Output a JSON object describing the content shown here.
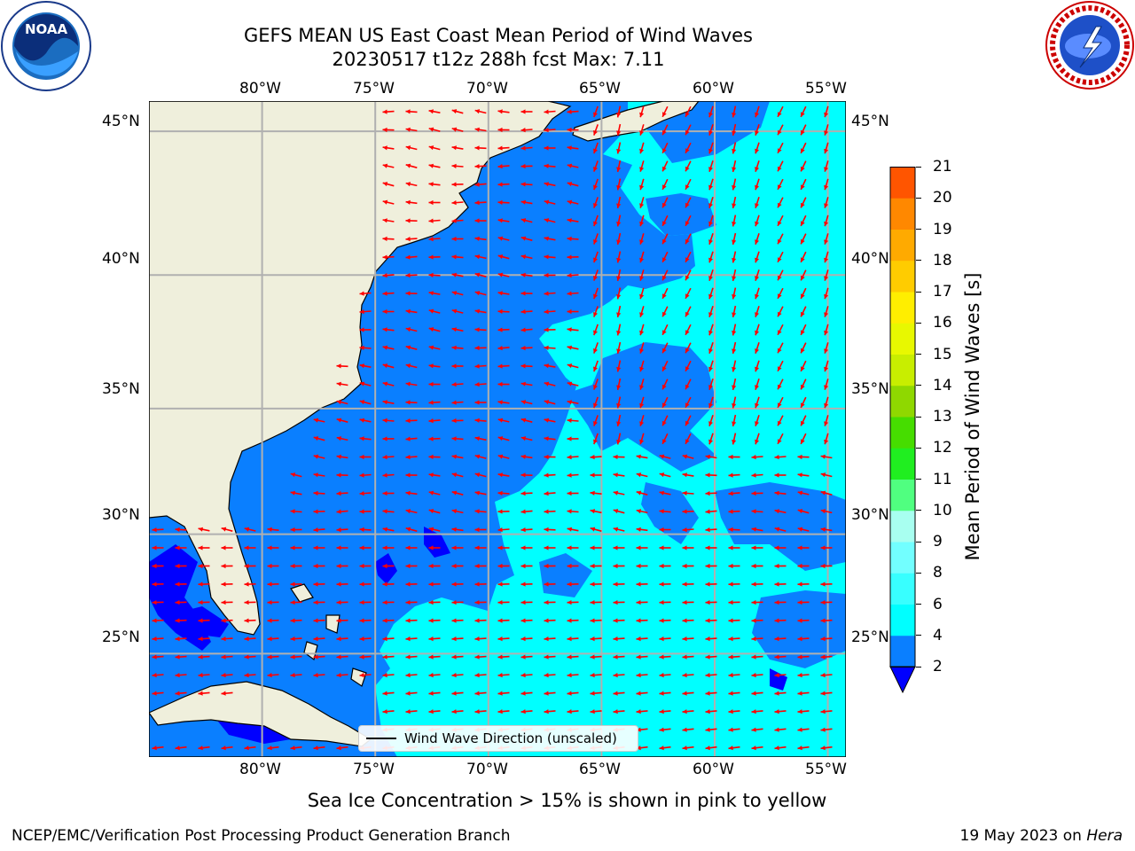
{
  "header": {
    "title_line1": "GEFS MEAN US East Coast Mean Period of Wind Waves",
    "title_line2": "20230517 t12z 288h fcst   Max: 7.11"
  },
  "logos": {
    "left": "noaa-logo",
    "right": "nws-logo"
  },
  "map": {
    "lon_labels": [
      "80°W",
      "75°W",
      "70°W",
      "65°W",
      "60°W",
      "55°W"
    ],
    "lat_labels": [
      "45°N",
      "40°N",
      "35°N",
      "30°N",
      "25°N"
    ],
    "lon_range": [
      -85,
      -54.2
    ],
    "lat_range": [
      20.5,
      46
    ],
    "land_color": "#efefdc",
    "ocean_color": "#0a7fff",
    "arrow_color": "#ff0000",
    "legend_label": "Wind Wave Direction (unscaled)"
  },
  "colorbar": {
    "label": "Mean Period of Wind Waves [s]",
    "ticks": [
      "2",
      "4",
      "6",
      "8",
      "9",
      "10",
      "11",
      "12",
      "13",
      "14",
      "15",
      "16",
      "17",
      "18",
      "19",
      "20",
      "21"
    ],
    "colors": [
      "#0a7fff",
      "#00ffff",
      "#38ffff",
      "#72ffff",
      "#a8fff0",
      "#50ff80",
      "#20ee20",
      "#46dd00",
      "#8fd800",
      "#c8ee00",
      "#e8f800",
      "#ffee00",
      "#ffcc00",
      "#ffaa00",
      "#ff8800",
      "#ff5500",
      "#ff2200",
      "#ff0000"
    ],
    "extend_color": "#0000ff"
  },
  "note": "Sea Ice Concentration > 15% is shown in pink to yellow",
  "footer": {
    "left": "NCEP/EMC/Verification Post Processing Product Generation Branch",
    "right_date": "19 May 2023 on ",
    "right_machine": "Hera"
  }
}
